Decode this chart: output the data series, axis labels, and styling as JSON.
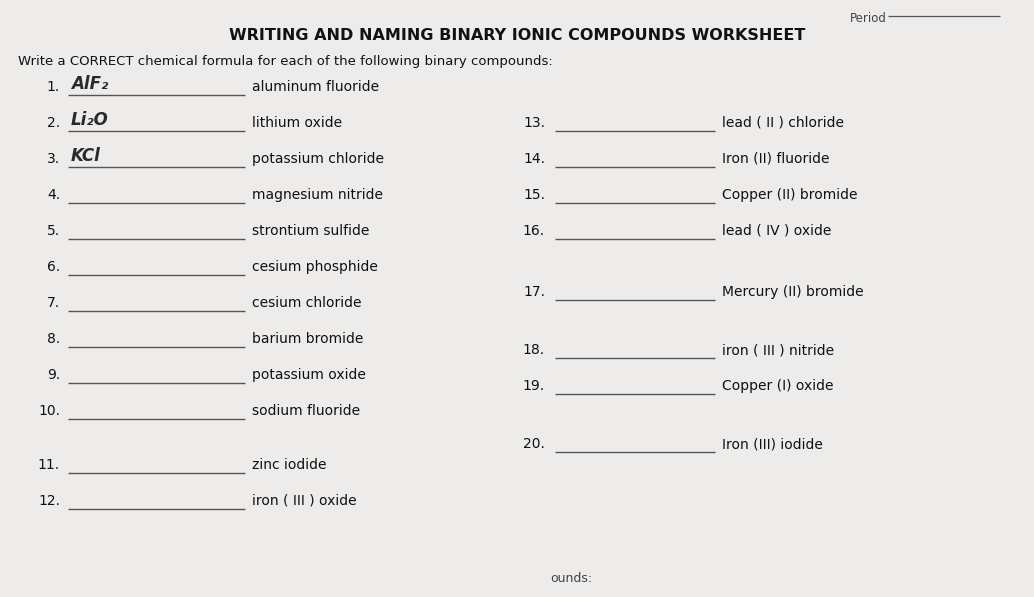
{
  "title": "WRITING AND NAMING BINARY IONIC COMPOUNDS WORKSHEET",
  "subtitle": "Write a CORRECT chemical formula for each of the following binary compounds:",
  "bg_color": "#e8e6e0",
  "left_items": [
    {
      "num": "1.",
      "answer": "AlF₂",
      "compound": "aluminum fluoride",
      "hand": true
    },
    {
      "num": "2.",
      "answer": "Li₂O",
      "compound": "lithium oxide",
      "hand": true
    },
    {
      "num": "3.",
      "answer": "KCl",
      "compound": "potassium chloride",
      "hand": true
    },
    {
      "num": "4.",
      "answer": "",
      "compound": "magnesium nitride",
      "hand": false
    },
    {
      "num": "5.",
      "answer": "",
      "compound": "strontium sulfide",
      "hand": false
    },
    {
      "num": "6.",
      "answer": "",
      "compound": "cesium phosphide",
      "hand": false
    },
    {
      "num": "7.",
      "answer": "",
      "compound": "cesium chloride",
      "hand": false
    },
    {
      "num": "8.",
      "answer": "",
      "compound": "barium bromide",
      "hand": false
    },
    {
      "num": "9.",
      "answer": "",
      "compound": "potassium oxide",
      "hand": false
    },
    {
      "num": "10.",
      "answer": "",
      "compound": "sodium fluoride",
      "hand": false
    }
  ],
  "left_extra": [
    {
      "num": "11.",
      "compound": "zinc iodide"
    },
    {
      "num": "12.",
      "compound": "iron ( III ) oxide"
    }
  ],
  "right_top": [
    {
      "num": "13.",
      "compound": "lead ( II ) chloride"
    },
    {
      "num": "14.",
      "compound": "Iron (II) fluoride"
    },
    {
      "num": "15.",
      "compound": "Copper (II) bromide"
    },
    {
      "num": "16.",
      "compound": "lead ( IV ) oxide"
    }
  ],
  "right_mid": [
    {
      "num": "17.",
      "compound": "Mercury (II) bromide"
    }
  ],
  "right_bot1": [
    {
      "num": "18.",
      "compound": "iron ( III ) nitride"
    },
    {
      "num": "19.",
      "compound": "Copper (I) oxide"
    }
  ],
  "right_bot2": [
    {
      "num": "20.",
      "compound": "Iron (III) iodide"
    }
  ],
  "period_label": "Period",
  "footer": "ounds:"
}
